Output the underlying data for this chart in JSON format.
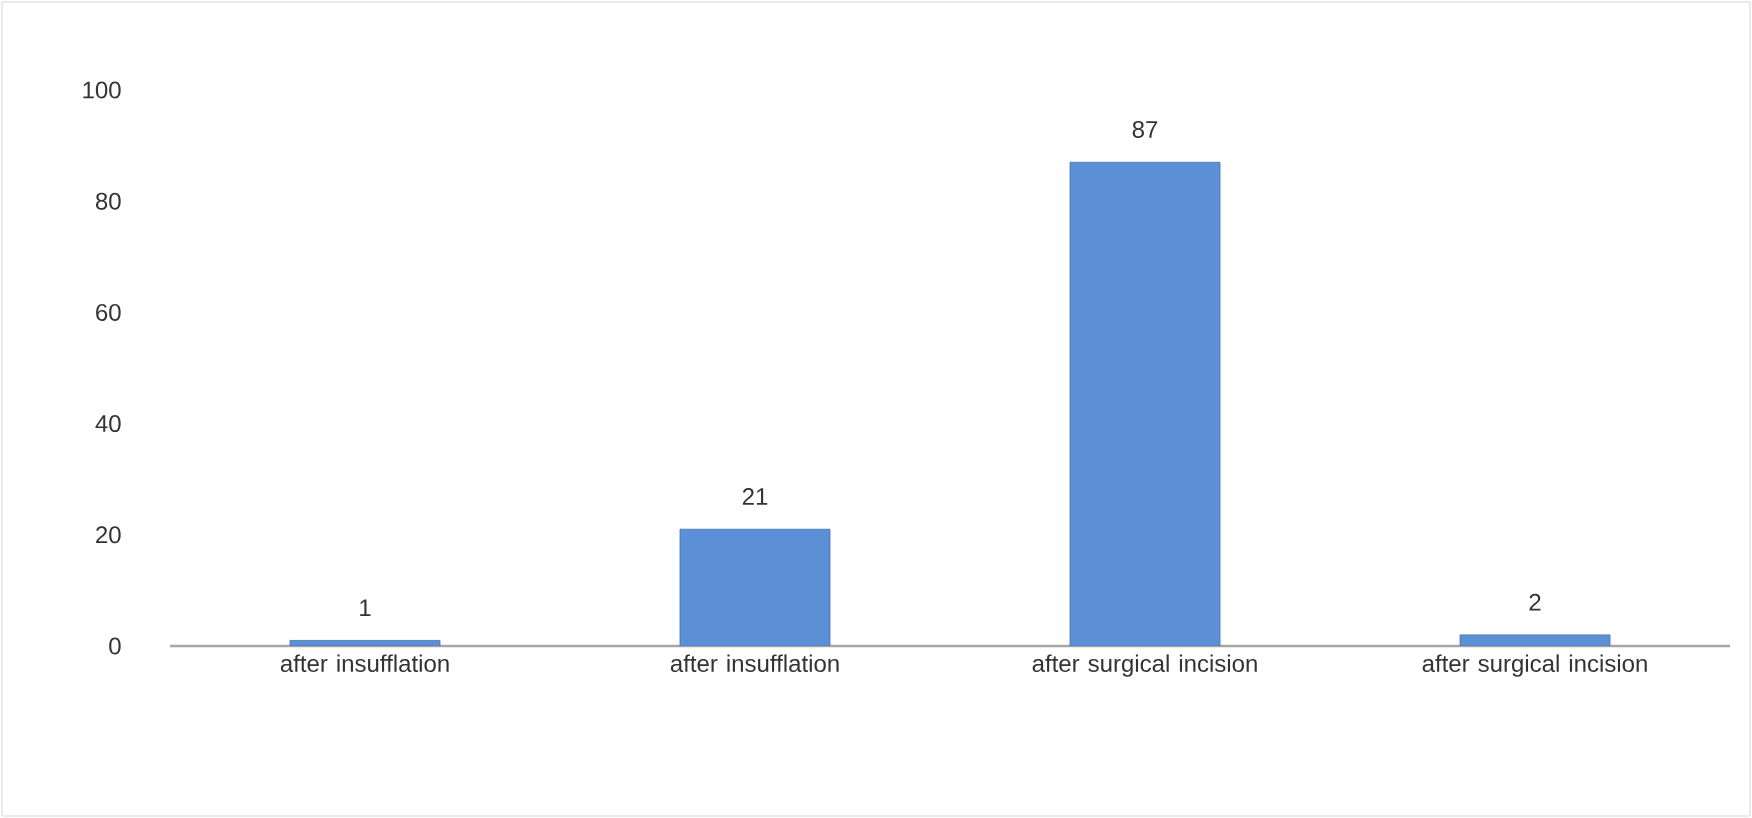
{
  "chart_data": {
    "type": "bar",
    "categories": [
      "after insufflation",
      "after insufflation",
      "after surgical incision",
      "after surgical incision"
    ],
    "values": [
      1,
      21,
      87,
      2
    ],
    "color": "#5b8fd6",
    "ylim": [
      0,
      100
    ],
    "yticks": [
      0,
      20,
      40,
      60,
      80,
      100
    ],
    "data_labels": true
  }
}
